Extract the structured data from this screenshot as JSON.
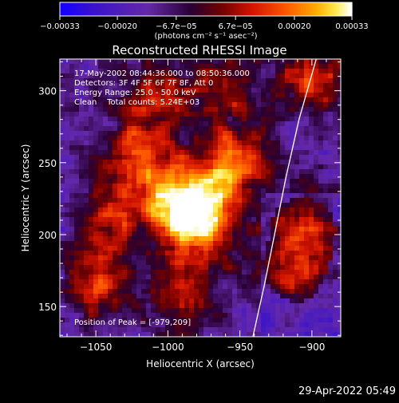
{
  "chart_data": {
    "type": "heatmap",
    "title": "Reconstructed RHESSI Image",
    "xlabel": "Heliocentric X (arcsec)",
    "ylabel": "Heliocentric Y (arcsec)",
    "xlim": [
      -1075,
      -880
    ],
    "ylim": [
      129,
      322
    ],
    "x_ticks": [
      -1050,
      -1000,
      -950,
      -900
    ],
    "x_tick_labels": [
      "−1050",
      "−1000",
      "−950",
      "−900"
    ],
    "y_ticks": [
      150,
      200,
      250,
      300
    ],
    "y_tick_labels": [
      "150",
      "200",
      "250",
      "300"
    ],
    "colorbar": {
      "ticks": [
        -0.00033,
        -0.0002,
        -6.7e-05,
        6.7e-05,
        0.0002,
        0.00033
      ],
      "tick_labels": [
        "−0.00033",
        "−0.00020",
        "−6.7e−05",
        "6.7e−05",
        "0.00020",
        "0.00033"
      ],
      "range": [
        -0.00033,
        0.00033
      ],
      "unit_label": "(photons cm⁻² s⁻¹ asec⁻²)",
      "colormap": "blue-purple-red-orange-yellow-white"
    },
    "info_lines": [
      "17-May-2002 08:44:36.000 to 08:50:36.000",
      "Detectors: 3F 4F 5F 6F 7F 8F, Att 0",
      "Energy Range: 25.0 - 50.0 keV",
      "Clean    Total counts: 5.24E+03"
    ],
    "peak_label": "Position of Peak = [-979,209]",
    "peak": {
      "x": -979,
      "y": 209
    },
    "hotspots": [
      {
        "x": -979,
        "y": 209,
        "amp": 1.0
      },
      {
        "x": -955,
        "y": 248,
        "amp": 0.85
      },
      {
        "x": -995,
        "y": 226,
        "amp": 0.75
      },
      {
        "x": -1022,
        "y": 254,
        "amp": 0.6
      },
      {
        "x": -1040,
        "y": 212,
        "amp": 0.55
      },
      {
        "x": -1010,
        "y": 296,
        "amp": 0.5
      },
      {
        "x": -900,
        "y": 308,
        "amp": 0.55
      },
      {
        "x": -905,
        "y": 205,
        "amp": 0.5
      },
      {
        "x": -912,
        "y": 172,
        "amp": 0.45
      },
      {
        "x": -1050,
        "y": 166,
        "amp": 0.55
      },
      {
        "x": -990,
        "y": 160,
        "amp": 0.45
      },
      {
        "x": -960,
        "y": 300,
        "amp": 0.45
      }
    ],
    "limb_curve": [
      {
        "x": -941,
        "y": 129
      },
      {
        "x": -933,
        "y": 165
      },
      {
        "x": -926,
        "y": 200
      },
      {
        "x": -918,
        "y": 240
      },
      {
        "x": -909,
        "y": 280
      },
      {
        "x": -897,
        "y": 322
      }
    ]
  },
  "timestamp": "29-Apr-2022 05:49",
  "colors": {
    "background": "#000000",
    "foreground": "#ffffff",
    "colormap_stops": [
      "#1a00ff",
      "#4a1aa8",
      "#6a2bb0",
      "#2a0030",
      "#8a0000",
      "#d01000",
      "#ff5000",
      "#ffa000",
      "#ffe040",
      "#ffffff"
    ]
  }
}
